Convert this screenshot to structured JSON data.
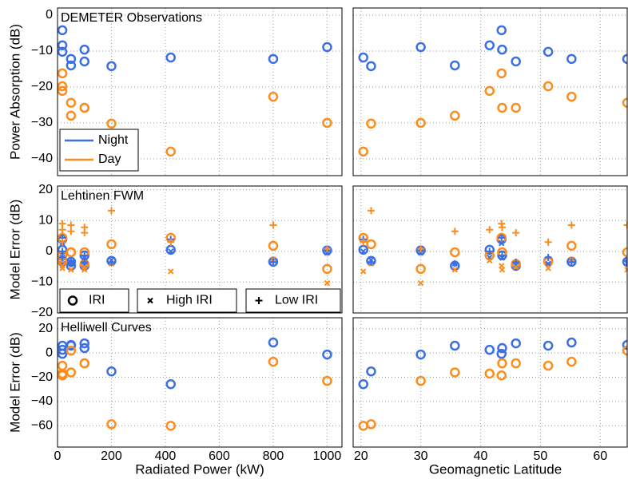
{
  "chart_data": {
    "type": "scatter",
    "x": [
      18,
      18,
      18,
      50,
      50,
      100,
      100,
      200,
      420,
      800,
      1000
    ],
    "x2": [
      43.5,
      41.5,
      51.3,
      64.5,
      35.7,
      43.6,
      45.9,
      21.7,
      20.4,
      55.2,
      30
    ],
    "xlabel": "Radiated Power (kW)",
    "x2label": "Geomagnetic Latitude",
    "xlim": [
      0,
      1055
    ],
    "xticks": [
      0,
      200,
      400,
      600,
      800,
      1000
    ],
    "x2lim": [
      18.7,
      64.5
    ],
    "x2ticks": [
      20,
      30,
      40,
      50,
      60
    ],
    "grid": true,
    "panels": [
      {
        "title": "DEMETER Observations",
        "ylabel": "Power Absorption (dB)",
        "ylim": [
          -44.7,
          2
        ],
        "yticks": [
          0,
          {
            "value": -10,
            "label": "−10"
          },
          {
            "value": -20,
            "label": "−20"
          },
          {
            "value": -30,
            "label": "−30"
          },
          {
            "value": -40,
            "label": "−40"
          }
        ],
        "series": [
          {
            "name": "Night",
            "color": "#3a6fe6",
            "marker": "o",
            "values": [
              -4.2,
              -8.4,
              -10.2,
              -12.2,
              -14,
              -9.6,
              -12.9,
              -14.2,
              -11.8,
              -12.2,
              -8.9
            ]
          },
          {
            "name": "Day",
            "color": "#ff8c1a",
            "marker": "o",
            "values": [
              -16.2,
              -21.1,
              -19.8,
              -24.4,
              -28,
              -25.8,
              -25.8,
              -30.2,
              -38,
              -22.7,
              -30
            ]
          }
        ]
      },
      {
        "title": "Lehtinen FWM",
        "ylabel": "Model Error (dB)",
        "ylim": [
          -20,
          21.2
        ],
        "yticks": [
          20,
          10,
          0,
          {
            "value": -10,
            "label": "−10"
          },
          {
            "value": -20,
            "label": "−20"
          }
        ],
        "marker_legend": [
          {
            "label": "IRI",
            "marker": "o"
          },
          {
            "label": "High IRI",
            "marker": "x"
          },
          {
            "label": "Low IRI",
            "marker": "+"
          }
        ],
        "series": [
          {
            "color": "#3a6fe6",
            "marker": "o",
            "values": [
              3.9,
              0.5,
              -3.1,
              -3.4,
              -4.7,
              -1.3,
              -4.7,
              -3.1,
              0.5,
              -3.4,
              0.3
            ]
          },
          {
            "color": "#ff8c1a",
            "marker": "o",
            "values": [
              4.4,
              -1.3,
              -3.4,
              -0.3,
              -0.3,
              -0.3,
              -4.1,
              2.3,
              4.4,
              1.8,
              -5.7
            ]
          },
          {
            "color": "#3a6fe6",
            "marker": "x",
            "values": [
              2.6,
              -2,
              -4,
              -3.9,
              -4,
              -2.1,
              -4.5,
              -2.8,
              0,
              -3,
              -0.5
            ]
          },
          {
            "color": "#ff8c1a",
            "marker": "x",
            "values": [
              -4.7,
              -3,
              -5.5,
              -6,
              -6,
              -6,
              -5,
              -4,
              -6.5,
              -2.6,
              -10.3
            ]
          },
          {
            "color": "#3a6fe6",
            "marker": "+",
            "values": [
              4.4,
              0,
              -2,
              -3,
              -4,
              -1.3,
              -3.5,
              -3.5,
              3.9,
              -3.5,
              0.5
            ]
          },
          {
            "color": "#ff8c1a",
            "marker": "+",
            "values": [
              9,
              7,
              3,
              8.5,
              6.5,
              7.8,
              6,
              13.2,
              3,
              8.5,
              0.8
            ]
          }
        ]
      },
      {
        "title": "Helliwell Curves",
        "ylabel": "Model Error (dB)",
        "ylim": [
          -77.5,
          29
        ],
        "yticks": [
          20,
          0,
          {
            "value": -20,
            "label": "−20"
          },
          {
            "value": -40,
            "label": "−40"
          },
          {
            "value": -60,
            "label": "−60"
          }
        ],
        "series": [
          {
            "color": "#3a6fe6",
            "marker": "o",
            "values": [
              -0.7,
              2.6,
              6,
              6.6,
              6,
              4,
              7.9,
              -15.2,
              -25.7,
              8.6,
              -1.3
            ]
          },
          {
            "color": "#ff8c1a",
            "marker": "o",
            "values": [
              -18.5,
              -17,
              -10.5,
              2,
              -16,
              -8.5,
              -8.5,
              -58.7,
              -60,
              -7.2,
              -23
            ]
          }
        ]
      }
    ]
  }
}
